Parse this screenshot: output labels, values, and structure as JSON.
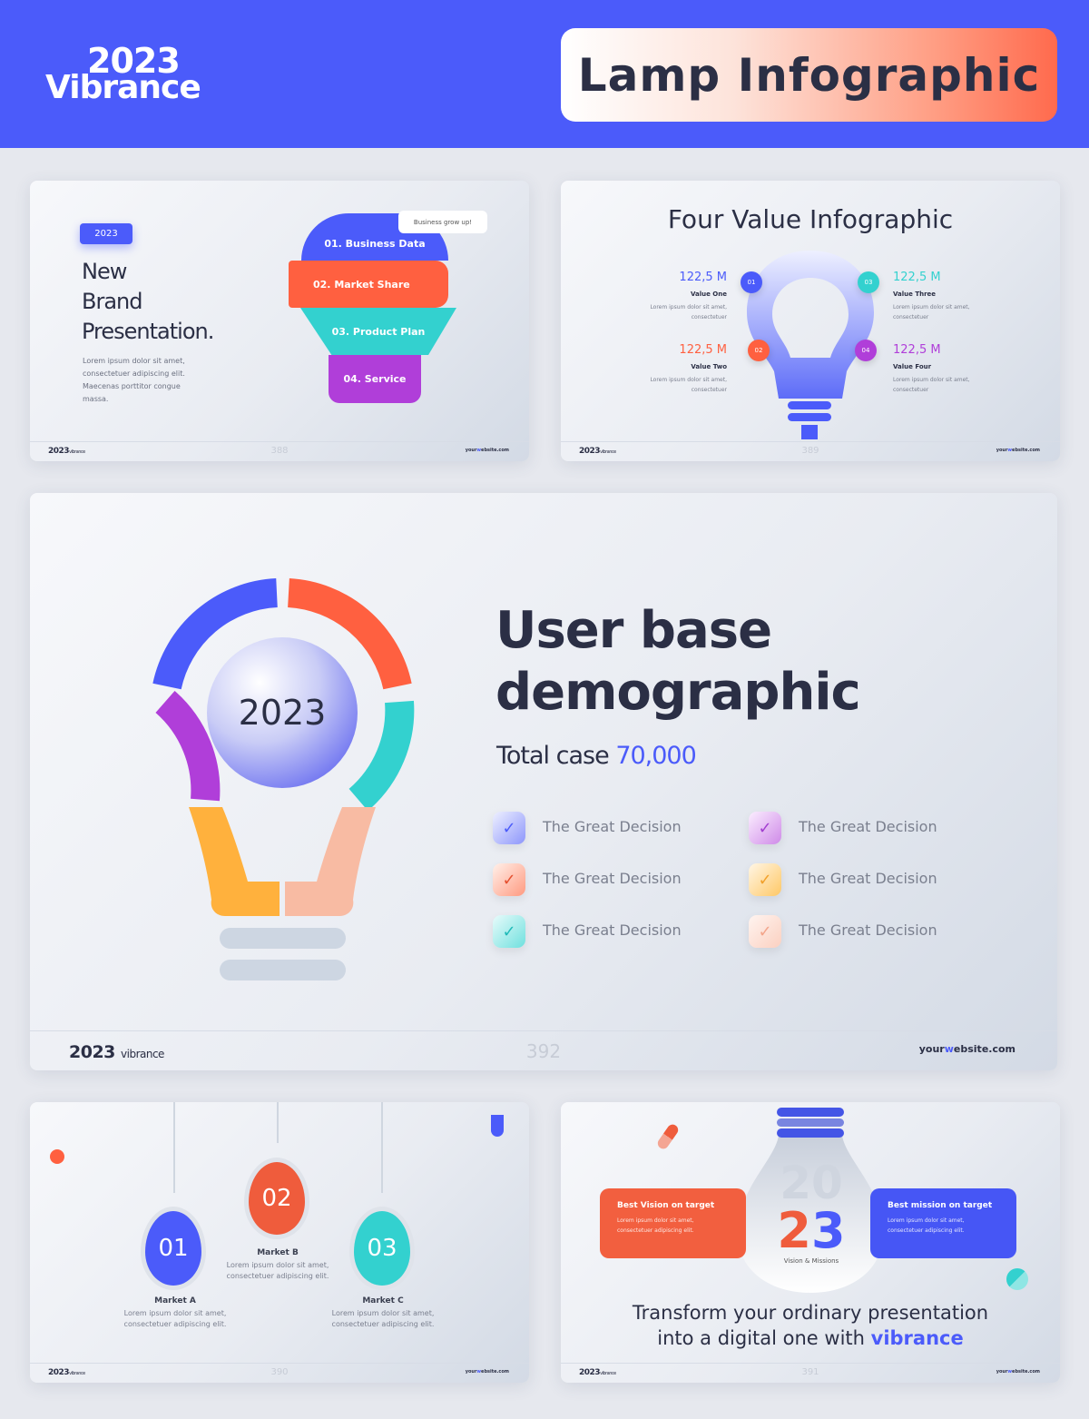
{
  "header": {
    "logo_year": "2023",
    "logo_word": "Vibrance",
    "title": "Lamp Infographic",
    "colors": {
      "brand": "#4b5bfa",
      "orange": "#ff6040",
      "teal": "#33d1cf",
      "purple": "#b03ed9",
      "yellow": "#ffb13d",
      "peach": "#f8bba3"
    }
  },
  "footer": {
    "year": "2023",
    "brand": "vibrance",
    "site_a": "your",
    "site_b": "w",
    "site_c": "ebsite.com"
  },
  "slide1": {
    "badge": "2023",
    "title_lines": [
      "New",
      "Brand",
      "Presentation."
    ],
    "body": "Lorem ipsum dolor sit amet, consectetuer adipiscing elit. Maecenas porttitor congue massa.",
    "bubble": "Business grow up!",
    "bands": [
      "01. Business Data",
      "02. Market Share",
      "03. Product Plan",
      "04. Service"
    ],
    "page": "388"
  },
  "slide2": {
    "title": "Four Value Infographic",
    "page": "389",
    "items": [
      {
        "num": "01",
        "value": "122,5 M",
        "name": "Value One",
        "text": "Lorem ipsum dolor sit amet, consectetuer"
      },
      {
        "num": "02",
        "value": "122,5 M",
        "name": "Value Two",
        "text": "Lorem ipsum dolor sit amet, consectetuer"
      },
      {
        "num": "03",
        "value": "122,5 M",
        "name": "Value Three",
        "text": "Lorem ipsum dolor sit amet, consectetuer"
      },
      {
        "num": "04",
        "value": "122,5 M",
        "name": "Value Four",
        "text": "Lorem ipsum dolor sit amet, consectetuer"
      }
    ]
  },
  "slide3": {
    "center_year": "2023",
    "title_line1": "User base",
    "title_line2": "demographic",
    "total_label": "Total case",
    "total_value": "70,000",
    "page": "392",
    "checklist": [
      "The Great Decision",
      "The Great Decision",
      "The Great Decision",
      "The Great Decision",
      "The Great Decision",
      "The Great Decision"
    ]
  },
  "slide4": {
    "page": "390",
    "markets": [
      {
        "num": "01",
        "name": "Market A",
        "text": "Lorem ipsum dolor sit amet, consectetuer adipiscing elit."
      },
      {
        "num": "02",
        "name": "Market B",
        "text": "Lorem ipsum dolor sit amet, consectetuer adipiscing elit."
      },
      {
        "num": "03",
        "name": "Market C",
        "text": "Lorem ipsum dolor sit amet, consectetuer adipiscing elit."
      }
    ]
  },
  "slide5": {
    "page": "391",
    "year_top": "20",
    "year_bottom_a": "2",
    "year_bottom_b": "3",
    "caption": "Vision & Missions",
    "left_card": {
      "title": "Best Vision on target",
      "text": "Lorem ipsum dolor sit amet, consectetuer adipiscing elit."
    },
    "right_card": {
      "title": "Best mission on target",
      "text": "Lorem ipsum dolor sit amet, consectetuer adipiscing elit."
    },
    "tagline_1": "Transform your ordinary presentation",
    "tagline_2": "into a digital one with",
    "tagline_brand": "vibrance"
  }
}
